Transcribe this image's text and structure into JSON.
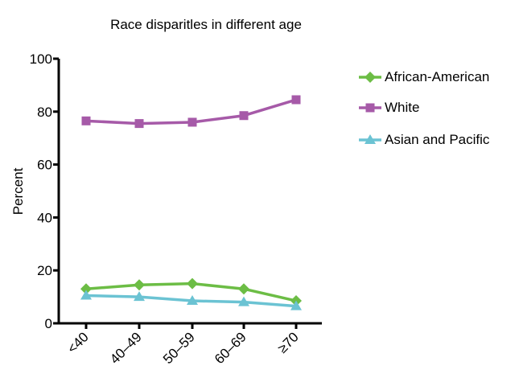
{
  "chart_data": {
    "type": "line",
    "title": "Race disparitles in different age",
    "xlabel": "",
    "ylabel": "Percent",
    "ylim": [
      0,
      100
    ],
    "yticks": [
      "0",
      "20",
      "40",
      "60",
      "80",
      "100"
    ],
    "categories": [
      "<40",
      "40–49",
      "50–59",
      "60–69",
      "≥70"
    ],
    "series": [
      {
        "name": "African-American",
        "marker": "diamond",
        "color": "#6cbd45",
        "values": [
          13,
          14.5,
          15,
          13,
          8.5
        ]
      },
      {
        "name": "White",
        "marker": "square",
        "color": "#a65aa8",
        "values": [
          76.5,
          75.5,
          76,
          78.5,
          84.5
        ]
      },
      {
        "name": "Asian and Pacific",
        "marker": "triangle",
        "color": "#6bc3d3",
        "values": [
          10.5,
          10,
          8.5,
          8,
          6.5
        ]
      }
    ],
    "grid": false,
    "legend_position": "right"
  }
}
